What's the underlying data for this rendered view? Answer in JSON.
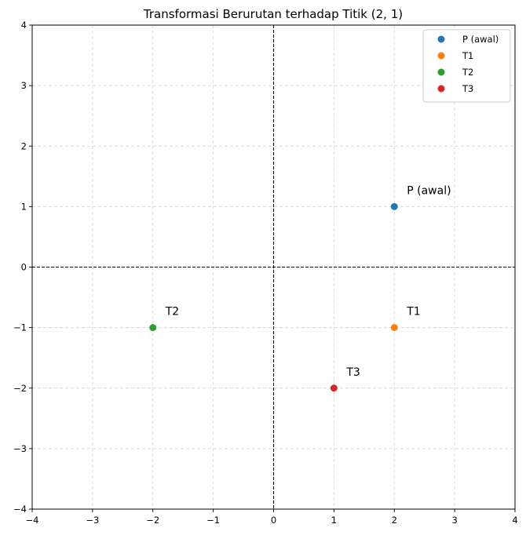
{
  "chart_data": {
    "type": "scatter",
    "title": "Transformasi Berurutan terhadap Titik (2, 1)",
    "xlabel": "",
    "ylabel": "",
    "xlim": [
      -4,
      4
    ],
    "ylim": [
      -4,
      4
    ],
    "xticks": [
      -4,
      -3,
      -2,
      -1,
      0,
      1,
      2,
      3,
      4
    ],
    "yticks": [
      -4,
      -3,
      -2,
      -1,
      0,
      1,
      2,
      3,
      4
    ],
    "xtick_labels": [
      "−4",
      "−3",
      "−2",
      "−1",
      "0",
      "1",
      "2",
      "3",
      "4"
    ],
    "ytick_labels": [
      "−4",
      "−3",
      "−2",
      "−1",
      "0",
      "1",
      "2",
      "3",
      "4"
    ],
    "grid": true,
    "reference_lines": [
      {
        "axis": "x",
        "value": 0,
        "style": "dashed",
        "color": "#000000"
      },
      {
        "axis": "y",
        "value": 0,
        "style": "dashed",
        "color": "#000000"
      }
    ],
    "legend": "top-right",
    "series": [
      {
        "name": "P (awal)",
        "x": 2,
        "y": 1,
        "color": "#1f77b4",
        "annotation": "P (awal)"
      },
      {
        "name": "T1",
        "x": 2,
        "y": -1,
        "color": "#ff7f0e",
        "annotation": "T1"
      },
      {
        "name": "T2",
        "x": -2,
        "y": -1,
        "color": "#2ca02c",
        "annotation": "T2"
      },
      {
        "name": "T3",
        "x": 1,
        "y": -2,
        "color": "#d62728",
        "annotation": "T3"
      }
    ]
  }
}
